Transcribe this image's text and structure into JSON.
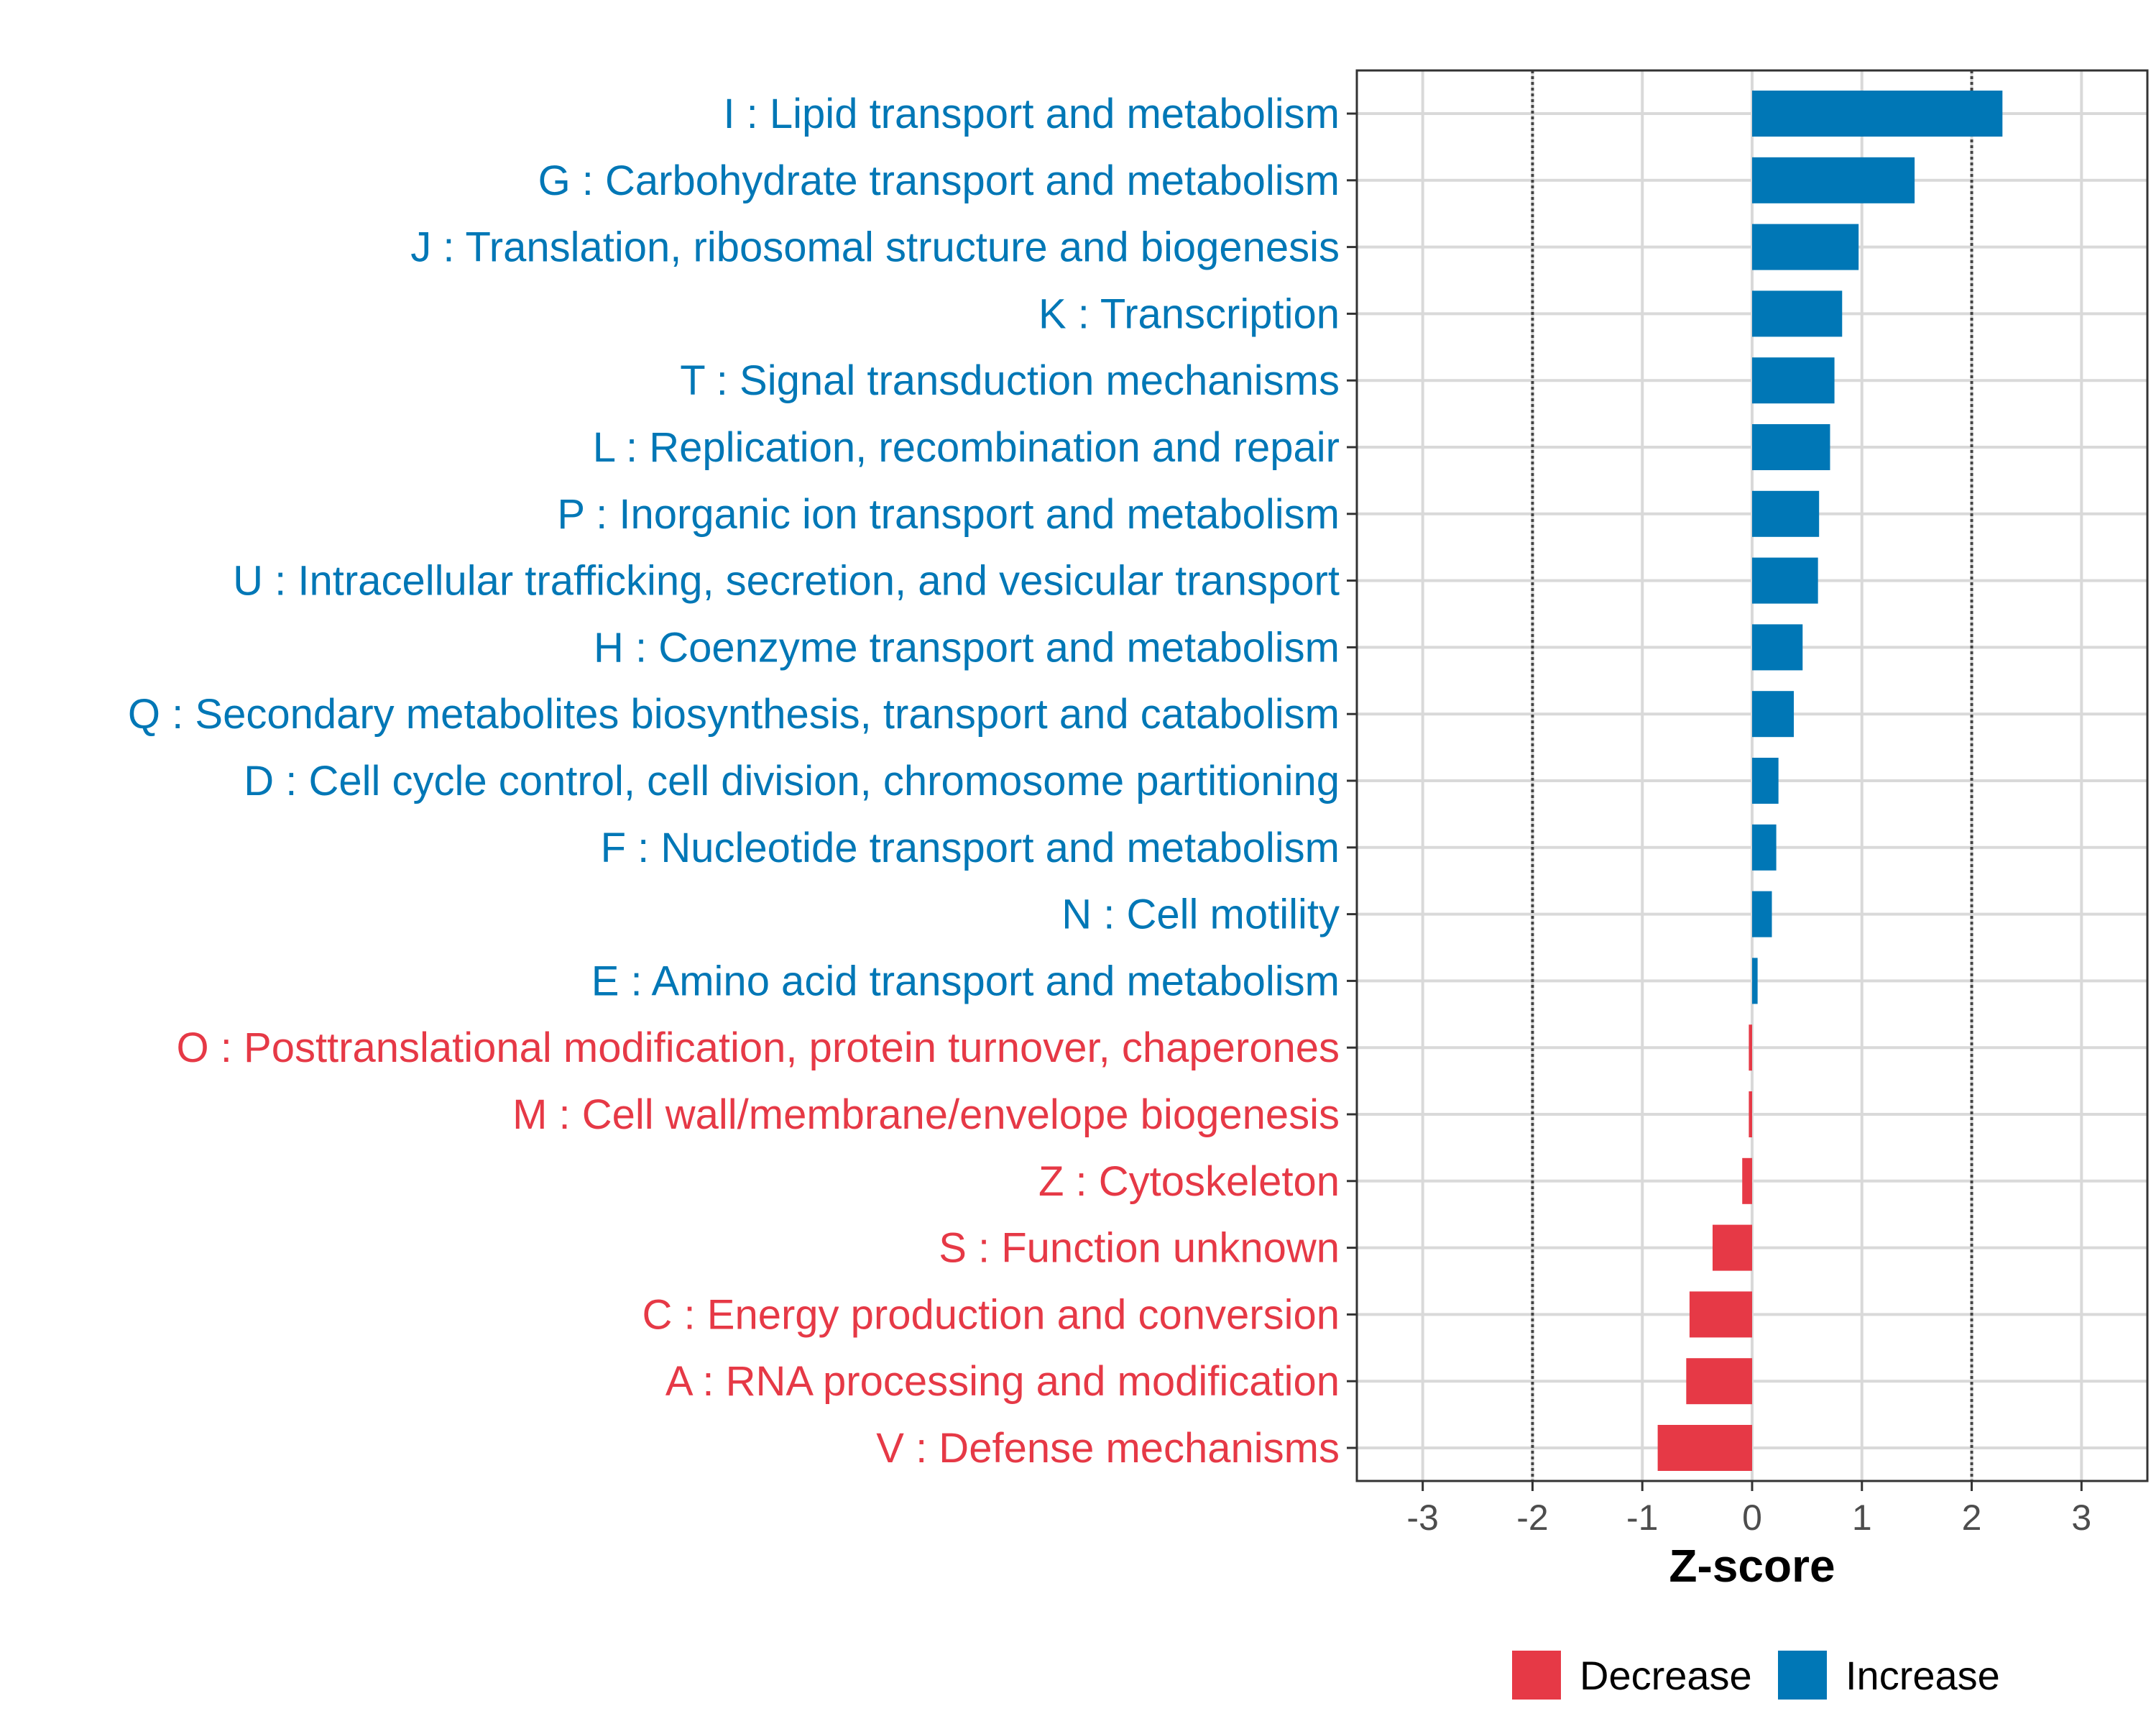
{
  "chart_data": {
    "type": "bar",
    "orientation": "horizontal",
    "xlabel": "Z-score",
    "ylabel": "",
    "xlim": [
      -3.6,
      3.6
    ],
    "x_ticks": [
      -3,
      -2,
      -1,
      0,
      1,
      2,
      3
    ],
    "x_tick_labels": [
      "-3",
      "-2",
      "-1",
      "0",
      "1",
      "2",
      "3"
    ],
    "reference_lines": [
      -2,
      2
    ],
    "grid": true,
    "legend_position": "bottom",
    "legend": [
      {
        "name": "Decrease",
        "color": "#E63946"
      },
      {
        "name": "Increase",
        "color": "#0077B6"
      }
    ],
    "categories": [
      {
        "label": "I : Lipid transport and metabolism",
        "value": 2.28,
        "group": "Increase"
      },
      {
        "label": "G : Carbohydrate transport and metabolism",
        "value": 1.48,
        "group": "Increase"
      },
      {
        "label": "J : Translation, ribosomal structure and biogenesis",
        "value": 0.97,
        "group": "Increase"
      },
      {
        "label": "K : Transcription",
        "value": 0.82,
        "group": "Increase"
      },
      {
        "label": "T : Signal transduction mechanisms",
        "value": 0.75,
        "group": "Increase"
      },
      {
        "label": "L : Replication, recombination and repair",
        "value": 0.71,
        "group": "Increase"
      },
      {
        "label": "P : Inorganic ion transport and metabolism",
        "value": 0.61,
        "group": "Increase"
      },
      {
        "label": "U : Intracellular trafficking, secretion, and vesicular transport",
        "value": 0.6,
        "group": "Increase"
      },
      {
        "label": "H : Coenzyme transport and metabolism",
        "value": 0.46,
        "group": "Increase"
      },
      {
        "label": "Q : Secondary metabolites biosynthesis, transport and catabolism",
        "value": 0.38,
        "group": "Increase"
      },
      {
        "label": "D : Cell cycle control, cell division, chromosome partitioning",
        "value": 0.24,
        "group": "Increase"
      },
      {
        "label": "F : Nucleotide transport and metabolism",
        "value": 0.22,
        "group": "Increase"
      },
      {
        "label": "N : Cell motility",
        "value": 0.18,
        "group": "Increase"
      },
      {
        "label": "E : Amino acid transport and metabolism",
        "value": 0.05,
        "group": "Increase"
      },
      {
        "label": "O : Posttranslational modification, protein turnover, chaperones",
        "value": -0.03,
        "group": "Decrease"
      },
      {
        "label": "M : Cell wall/membrane/envelope biogenesis",
        "value": -0.03,
        "group": "Decrease"
      },
      {
        "label": "Z : Cytoskeleton",
        "value": -0.09,
        "group": "Decrease"
      },
      {
        "label": "S : Function unknown",
        "value": -0.36,
        "group": "Decrease"
      },
      {
        "label": "C : Energy production and conversion",
        "value": -0.57,
        "group": "Decrease"
      },
      {
        "label": "A : RNA processing and modification",
        "value": -0.6,
        "group": "Decrease"
      },
      {
        "label": "V : Defense mechanisms",
        "value": -0.86,
        "group": "Decrease"
      }
    ]
  }
}
